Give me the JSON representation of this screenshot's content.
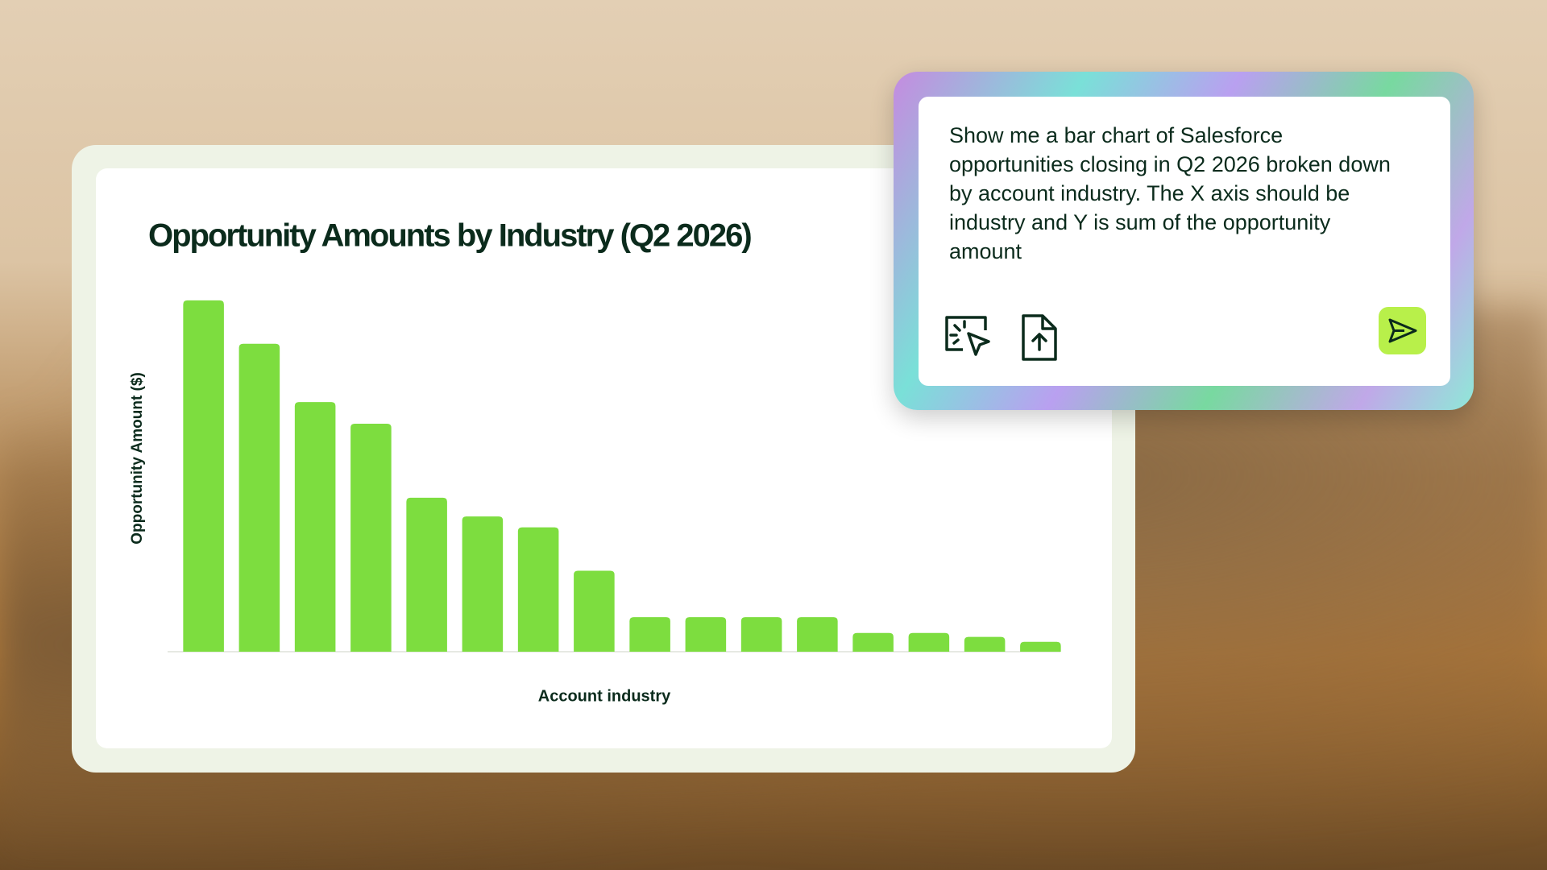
{
  "chart_data": {
    "type": "bar",
    "title": "Opportunity Amounts by Industry (Q2 2026)",
    "xlabel": "Account industry",
    "ylabel": "Opportunity Amount ($)",
    "categories": [
      null,
      null,
      null,
      null,
      null,
      null,
      null,
      null,
      null,
      null,
      null,
      null,
      null,
      null,
      null,
      null
    ],
    "values": [
      356,
      312,
      253,
      231,
      156,
      137,
      126,
      82,
      35,
      35,
      35,
      35,
      19,
      19,
      15,
      10
    ],
    "color": "#7ddd3f",
    "ylim": [
      0,
      360
    ]
  },
  "prompt": {
    "text": "Show me a bar chart of Salesforce opportunities closing in Q2 2026 broken down by account industry. The X axis should be industry and Y is sum of the opportunity amount"
  }
}
